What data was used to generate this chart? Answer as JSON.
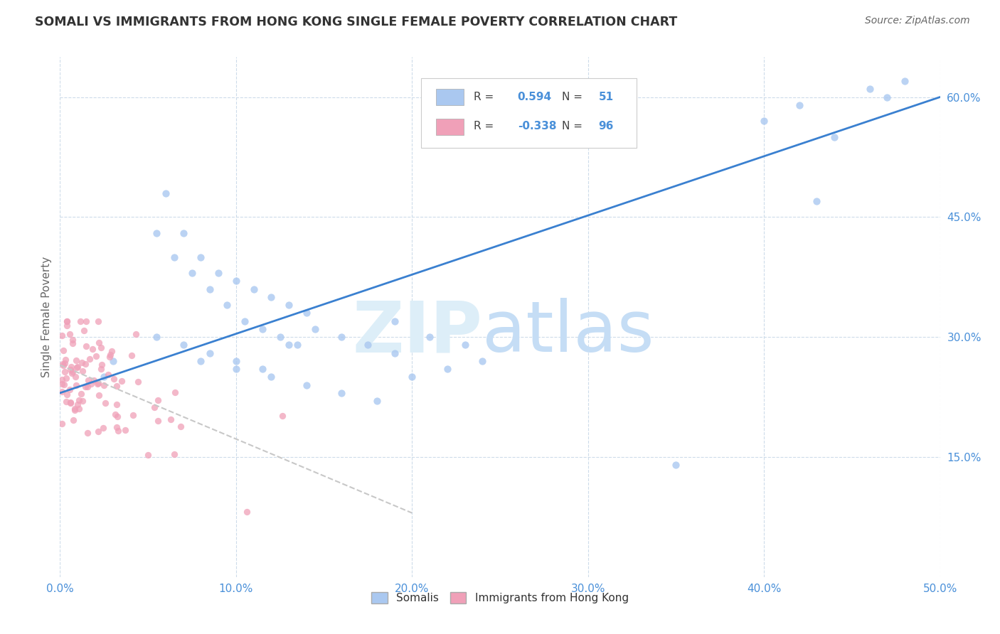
{
  "title": "SOMALI VS IMMIGRANTS FROM HONG KONG SINGLE FEMALE POVERTY CORRELATION CHART",
  "source": "Source: ZipAtlas.com",
  "ylabel": "Single Female Poverty",
  "xlim": [
    0.0,
    0.5
  ],
  "ylim": [
    0.0,
    0.65
  ],
  "somali_R": 0.594,
  "somali_N": 51,
  "hk_R": -0.338,
  "hk_N": 96,
  "somali_color": "#aac8f0",
  "hk_color": "#f0a0b8",
  "somali_line_color": "#3a80d0",
  "hk_line_color": "#c8c8c8",
  "background_color": "#ffffff",
  "grid_color": "#c8d8e8",
  "title_color": "#333333",
  "axis_color": "#4a90d9",
  "label_color": "#666666"
}
